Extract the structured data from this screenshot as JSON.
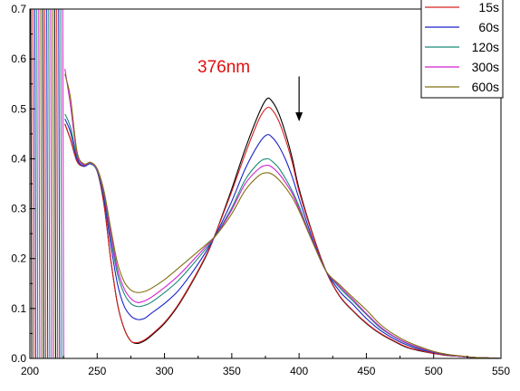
{
  "chart_data": {
    "type": "line",
    "title": "",
    "xlabel": "",
    "ylabel": "",
    "xlim": [
      200,
      550
    ],
    "ylim": [
      0.0,
      0.7
    ],
    "x_ticks": [
      200,
      250,
      300,
      350,
      400,
      450,
      500,
      550
    ],
    "x_tick_labels": [
      "200",
      "250",
      "300",
      "350",
      "400",
      "450",
      "500",
      "550"
    ],
    "y_ticks": [
      0.0,
      0.1,
      0.2,
      0.3,
      0.4,
      0.5,
      0.6,
      0.7
    ],
    "y_tick_labels": [
      "0.0",
      "0.1",
      "0.2",
      "0.3",
      "0.4",
      "0.5",
      "0.6",
      "0.7"
    ],
    "grid": false,
    "legend_position": "top-right",
    "annotation": {
      "text": "376nm",
      "color": "#e01010",
      "arrow_x": 400,
      "arrow_from_y": 0.565,
      "arrow_to_y": 0.475
    },
    "x": [
      226,
      230,
      235,
      240,
      245,
      250,
      255,
      260,
      265,
      270,
      275,
      280,
      285,
      290,
      300,
      310,
      320,
      330,
      335,
      340,
      350,
      360,
      370,
      376,
      380,
      385,
      390,
      395,
      400,
      410,
      420,
      430,
      440,
      450,
      460,
      470,
      480,
      490,
      500,
      510,
      520,
      530,
      540,
      550
    ],
    "series": [
      {
        "name": "",
        "color": "#000000",
        "values": [
          0.47,
          0.44,
          0.395,
          0.385,
          0.39,
          0.375,
          0.31,
          0.2,
          0.11,
          0.06,
          0.035,
          0.03,
          0.035,
          0.045,
          0.07,
          0.105,
          0.15,
          0.2,
          0.23,
          0.265,
          0.34,
          0.42,
          0.49,
          0.52,
          0.515,
          0.49,
          0.45,
          0.4,
          0.34,
          0.25,
          0.175,
          0.125,
          0.095,
          0.07,
          0.05,
          0.035,
          0.022,
          0.015,
          0.01,
          0.006,
          0.004,
          0.002,
          0.001,
          0.0
        ]
      },
      {
        "name": "15s",
        "color": "#d62020",
        "values": [
          0.47,
          0.44,
          0.395,
          0.385,
          0.39,
          0.375,
          0.31,
          0.2,
          0.11,
          0.06,
          0.035,
          0.032,
          0.037,
          0.047,
          0.072,
          0.107,
          0.152,
          0.202,
          0.231,
          0.264,
          0.335,
          0.41,
          0.478,
          0.502,
          0.498,
          0.475,
          0.438,
          0.392,
          0.335,
          0.248,
          0.175,
          0.126,
          0.096,
          0.071,
          0.051,
          0.036,
          0.023,
          0.016,
          0.01,
          0.006,
          0.004,
          0.002,
          0.001,
          0.0
        ]
      },
      {
        "name": "60s",
        "color": "#1a22c8",
        "values": [
          0.48,
          0.455,
          0.4,
          0.385,
          0.39,
          0.375,
          0.32,
          0.23,
          0.15,
          0.105,
          0.085,
          0.078,
          0.08,
          0.09,
          0.11,
          0.135,
          0.17,
          0.21,
          0.233,
          0.258,
          0.315,
          0.38,
          0.43,
          0.448,
          0.443,
          0.425,
          0.398,
          0.363,
          0.32,
          0.24,
          0.175,
          0.135,
          0.108,
          0.08,
          0.057,
          0.04,
          0.027,
          0.018,
          0.012,
          0.007,
          0.004,
          0.002,
          0.001,
          0.0
        ]
      },
      {
        "name": "120s",
        "color": "#1a8a78",
        "values": [
          0.49,
          0.465,
          0.405,
          0.387,
          0.391,
          0.376,
          0.327,
          0.245,
          0.17,
          0.13,
          0.11,
          0.104,
          0.106,
          0.112,
          0.132,
          0.155,
          0.185,
          0.217,
          0.234,
          0.255,
          0.302,
          0.358,
          0.392,
          0.4,
          0.395,
          0.381,
          0.36,
          0.335,
          0.305,
          0.235,
          0.175,
          0.142,
          0.115,
          0.088,
          0.062,
          0.044,
          0.03,
          0.02,
          0.013,
          0.008,
          0.004,
          0.002,
          0.001,
          0.0
        ]
      },
      {
        "name": "300s",
        "color": "#d020d0",
        "values": [
          0.58,
          0.51,
          0.41,
          0.388,
          0.392,
          0.378,
          0.332,
          0.252,
          0.18,
          0.14,
          0.12,
          0.112,
          0.115,
          0.122,
          0.142,
          0.165,
          0.193,
          0.222,
          0.236,
          0.253,
          0.298,
          0.35,
          0.38,
          0.387,
          0.383,
          0.37,
          0.352,
          0.33,
          0.3,
          0.235,
          0.175,
          0.145,
          0.118,
          0.09,
          0.064,
          0.045,
          0.031,
          0.021,
          0.013,
          0.008,
          0.004,
          0.002,
          0.001,
          0.0
        ]
      },
      {
        "name": "600s",
        "color": "#807010",
        "values": [
          0.57,
          0.525,
          0.415,
          0.39,
          0.393,
          0.38,
          0.336,
          0.262,
          0.192,
          0.154,
          0.137,
          0.132,
          0.134,
          0.14,
          0.158,
          0.18,
          0.203,
          0.226,
          0.238,
          0.252,
          0.29,
          0.337,
          0.366,
          0.372,
          0.369,
          0.358,
          0.342,
          0.322,
          0.296,
          0.233,
          0.175,
          0.148,
          0.122,
          0.097,
          0.069,
          0.049,
          0.034,
          0.023,
          0.014,
          0.008,
          0.005,
          0.002,
          0.001,
          0.0
        ]
      }
    ]
  }
}
